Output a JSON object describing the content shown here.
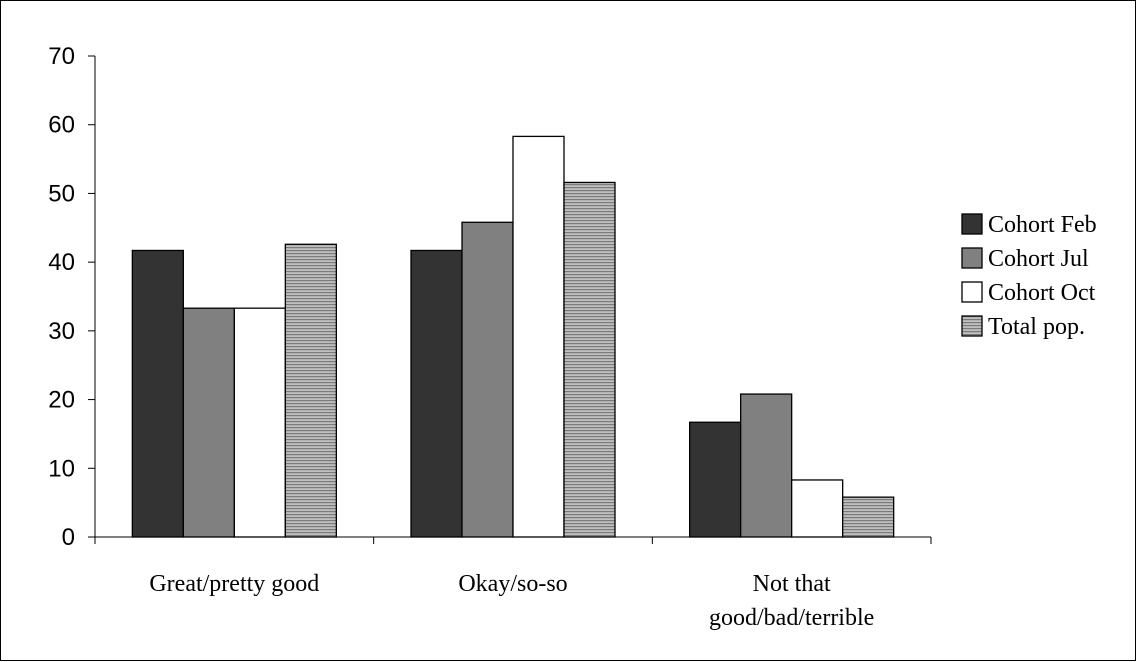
{
  "chart_data": {
    "type": "bar",
    "title": "",
    "xlabel": "",
    "ylabel": "",
    "ylim": [
      0,
      70
    ],
    "yticks": [
      0,
      10,
      20,
      30,
      40,
      50,
      60,
      70
    ],
    "grid": false,
    "legend_position": "right",
    "categories": [
      [
        "Great/pretty good"
      ],
      [
        "Okay/so-so"
      ],
      [
        "Not that",
        "good/bad/terrible"
      ]
    ],
    "series": [
      {
        "name": "Cohort Feb",
        "values": [
          41.7,
          41.7,
          16.7
        ],
        "color": "#333333",
        "pattern": "solid"
      },
      {
        "name": "Cohort Jul",
        "values": [
          33.3,
          45.8,
          20.8
        ],
        "color": "#808080",
        "pattern": "solid"
      },
      {
        "name": "Cohort Oct",
        "values": [
          33.3,
          58.3,
          8.3
        ],
        "color": "#ffffff",
        "pattern": "solid"
      },
      {
        "name": "Total pop.",
        "values": [
          42.6,
          51.6,
          5.8
        ],
        "color": "#a6a6a6",
        "pattern": "horizontal-lines"
      }
    ]
  }
}
